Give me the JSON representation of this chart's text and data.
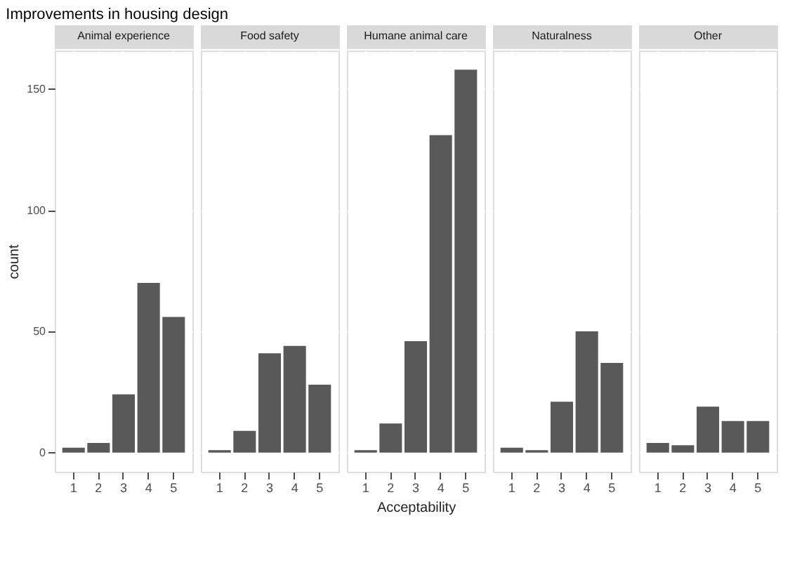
{
  "chart_data": [
    {
      "type": "bar",
      "title": "Animal experience",
      "annotations": [
        "Improvements in housing design"
      ],
      "ylabel": "count",
      "categories": [
        "1",
        "2",
        "3",
        "4",
        "5"
      ],
      "values": [
        2,
        4,
        24,
        70,
        56
      ],
      "color": "#595959",
      "ylim": [
        -7.9,
        165.9
      ],
      "yticks": [
        0,
        50,
        100,
        150
      ],
      "grid": true
    },
    {
      "type": "bar",
      "title": "Food safety",
      "categories": [
        "1",
        "2",
        "3",
        "4",
        "5"
      ],
      "values": [
        1,
        9,
        41,
        44,
        28
      ],
      "color": "#595959",
      "ylim": [
        -7.9,
        165.9
      ],
      "yticks": [
        0,
        50,
        100,
        150
      ],
      "grid": true,
      "tick_labels": "x"
    },
    {
      "type": "bar",
      "title": "Humane animal care",
      "xlabel": "Acceptability",
      "categories": [
        "1",
        "2",
        "3",
        "4",
        "5"
      ],
      "values": [
        1,
        12,
        46,
        131,
        158
      ],
      "color": "#595959",
      "ylim": [
        -7.9,
        165.9
      ],
      "yticks": [
        0,
        50,
        100,
        150
      ],
      "grid": true,
      "tick_labels": "x"
    },
    {
      "type": "bar",
      "title": "Naturalness",
      "categories": [
        "1",
        "2",
        "3",
        "4",
        "5"
      ],
      "values": [
        2,
        1,
        21,
        50,
        37
      ],
      "color": "#595959",
      "ylim": [
        -7.9,
        165.9
      ],
      "yticks": [
        0,
        50,
        100,
        150
      ],
      "grid": true,
      "tick_labels": "x"
    },
    {
      "type": "bar",
      "title": "Other",
      "categories": [
        "1",
        "2",
        "3",
        "4",
        "5"
      ],
      "values": [
        4,
        3,
        19,
        13,
        13
      ],
      "color": "#595959",
      "ylim": [
        -7.9,
        165.9
      ],
      "yticks": [
        0,
        50,
        100,
        150
      ],
      "grid": true,
      "tick_labels": "x"
    }
  ]
}
